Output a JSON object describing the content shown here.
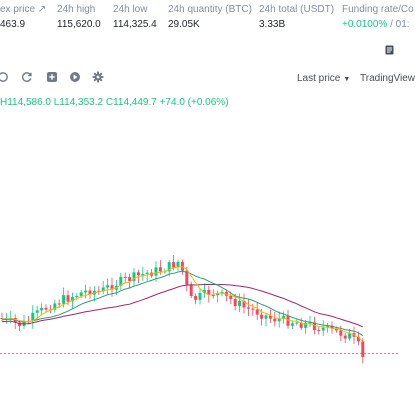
{
  "stats": [
    {
      "label": "ex price ↗",
      "value": "463.9",
      "green": false
    },
    {
      "label": "24h high",
      "value": "115,620.0",
      "green": false
    },
    {
      "label": "24h low",
      "value": "114,325.4",
      "green": false
    },
    {
      "label": "24h quantity (BTC)",
      "value": "29.05K",
      "green": false
    },
    {
      "label": "24h total (USDT)",
      "value": "3.33B",
      "green": false
    }
  ],
  "funding": {
    "label": "Funding rate/Co",
    "value": "+0.0100%",
    "suffix": " / 01:"
  },
  "toolbar": {
    "price_type": "Last price",
    "view": "TradingView"
  },
  "ohlc": {
    "high": "H114,586.0",
    "low": "L114,353.2",
    "close": "C114,449.7",
    "change": "+74.0 (+0.06%)"
  },
  "colors": {
    "up": "#0ecb81",
    "down": "#f6465d",
    "ma_short": "#f0b90b",
    "ma_mid": "#2e9e7a",
    "ma_long": "#a3276e"
  },
  "icons": [
    "indicator-icon",
    "refresh-icon",
    "add-icon",
    "settings-icon",
    "document-icon",
    "caret-down-icon"
  ]
}
